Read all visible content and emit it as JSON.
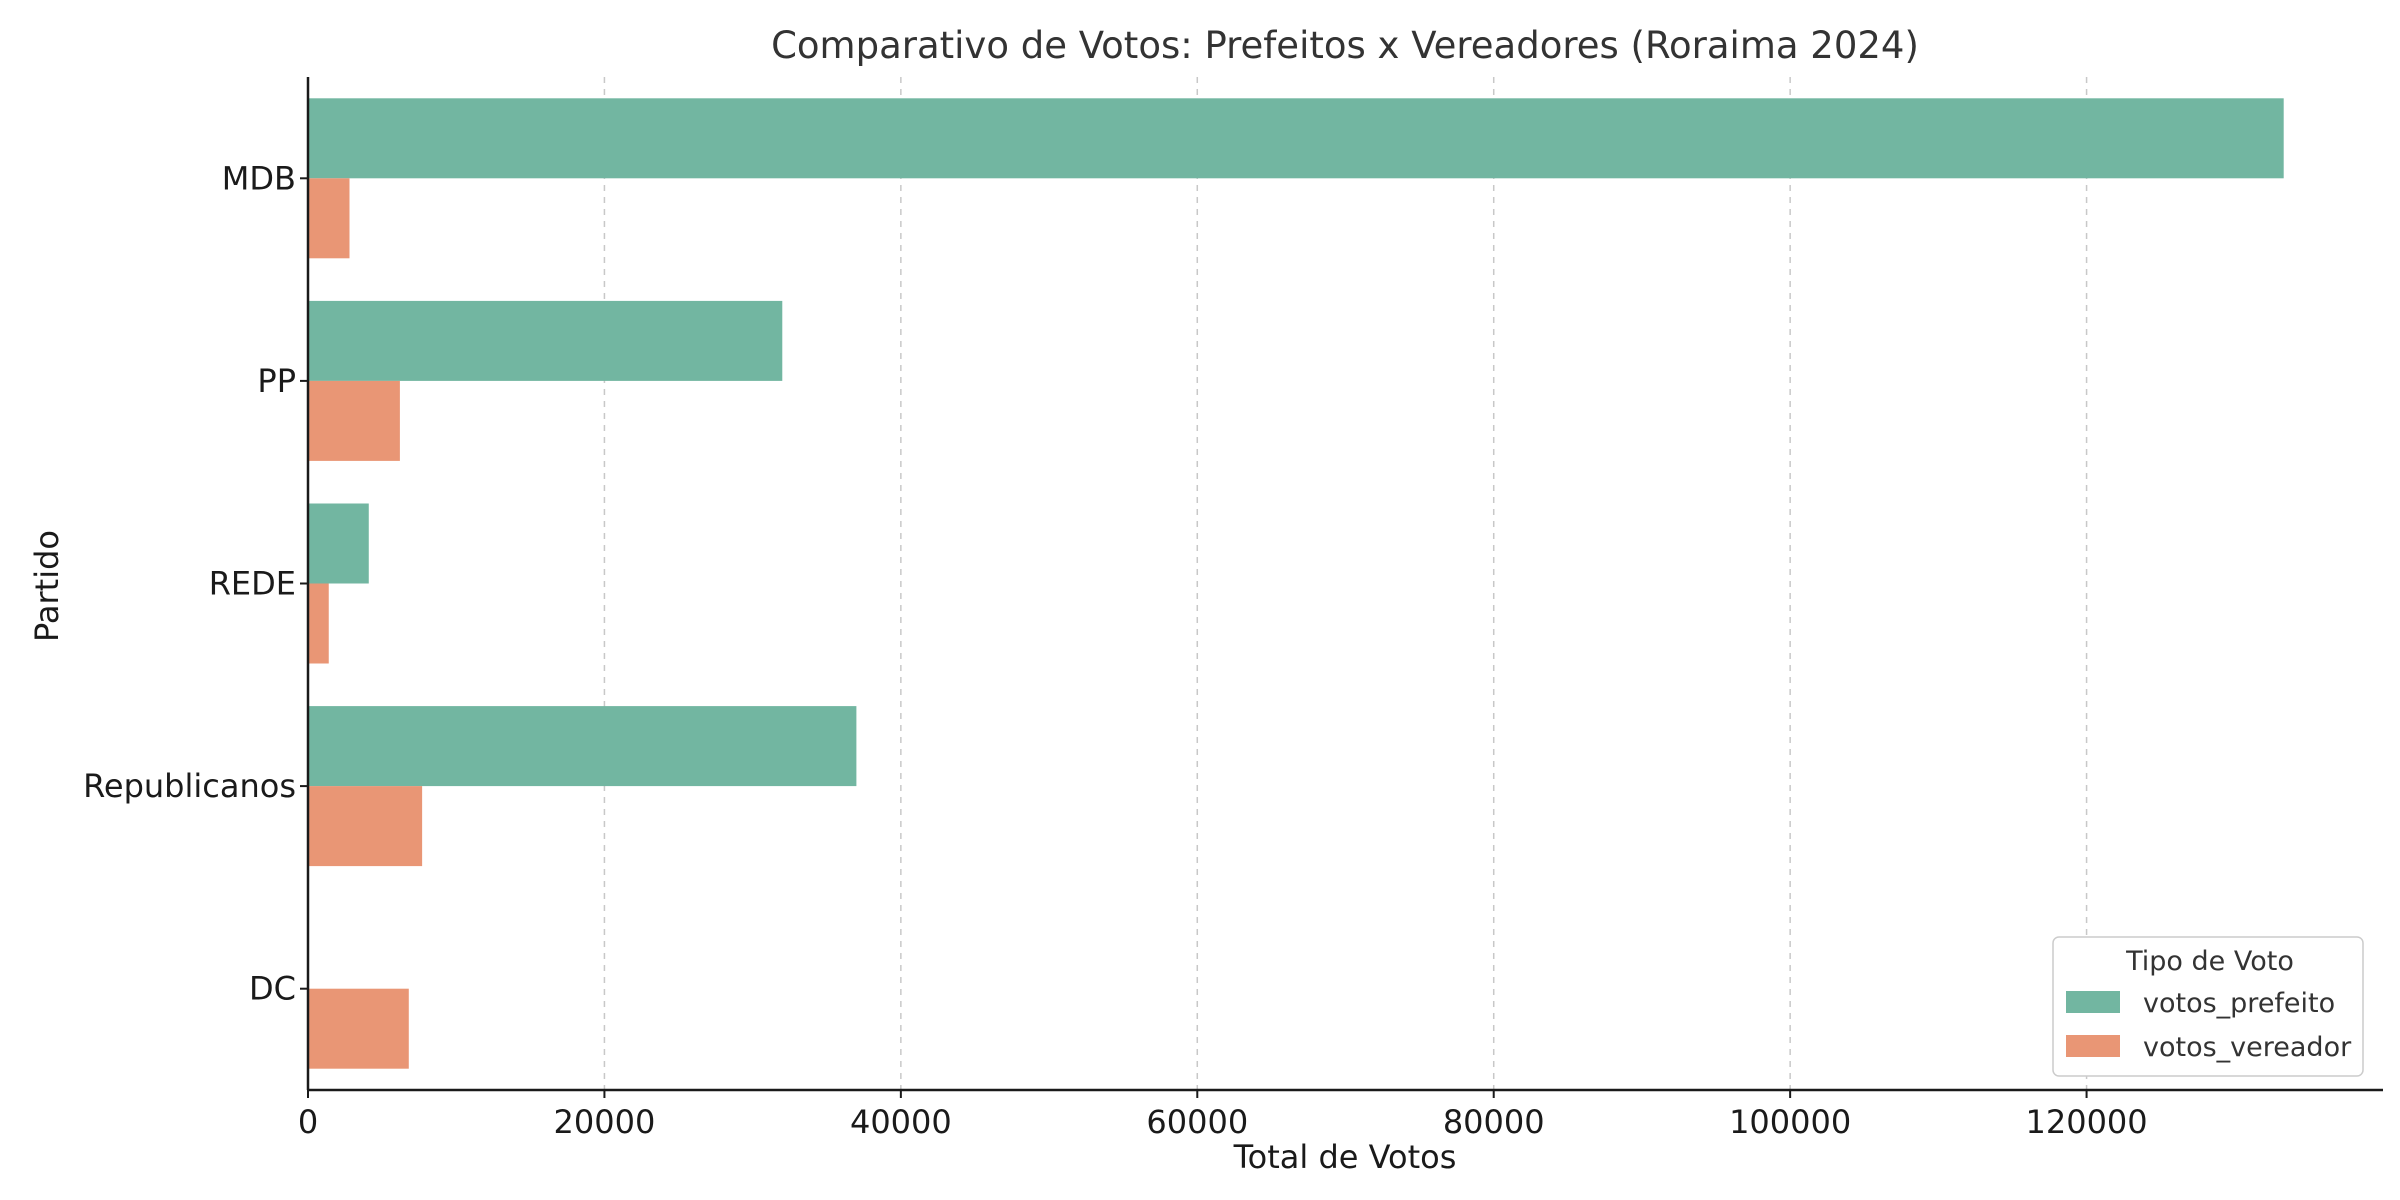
{
  "chart_data": {
    "type": "bar",
    "orientation": "horizontal",
    "title": "Comparativo de Votos: Prefeitos x Vereadores (Roraima 2024)",
    "xlabel": "Total de Votos",
    "ylabel": "Partido",
    "categories": [
      "MDB",
      "PP",
      "REDE",
      "Republicanos",
      "DC"
    ],
    "series": [
      {
        "name": "votos_prefeito",
        "values": [
          133300,
          32000,
          4100,
          37000,
          0
        ],
        "color": "#72b6a1"
      },
      {
        "name": "votos_vereador",
        "values": [
          2800,
          6200,
          1400,
          7700,
          6800
        ],
        "color": "#e99675"
      }
    ],
    "xlim": [
      0,
      140000
    ],
    "xticks": [
      0,
      20000,
      40000,
      60000,
      80000,
      100000,
      120000
    ],
    "grid": "vertical-dashed",
    "legend": {
      "title": "Tipo de Voto",
      "placement": "bottom-right"
    }
  }
}
